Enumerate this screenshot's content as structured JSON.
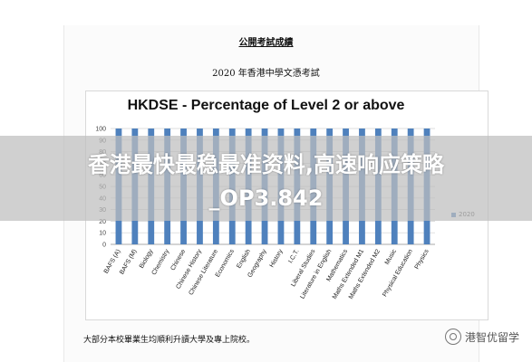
{
  "document": {
    "title": "公開考試成績",
    "subtitle": "2020 年香港中學文憑考試",
    "footnote": "大部分本校畢業生均順利升讀大學及專上院校。"
  },
  "overlay": {
    "line1": "香港最快最稳最准资料,高速响应策略",
    "line2": "_OP3.842"
  },
  "watermark": {
    "text": "港智优留学",
    "icon": "wechat-icon"
  },
  "chart_data": {
    "type": "bar",
    "title": "HKDSE - Percentage of Level 2 or above",
    "categories": [
      "BAFS (A)",
      "BAFS (M)",
      "Biology",
      "Chemistry",
      "Chinese",
      "Chinese History",
      "Chinese Literature",
      "Economics",
      "English",
      "Geography",
      "History",
      "I.C.T.",
      "Liberal Studies",
      "Literature in English",
      "Mathematics",
      "Maths Extended M1",
      "Maths Extended M2",
      "Music",
      "Physical Education",
      "Physics"
    ],
    "series": [
      {
        "name": "2020",
        "values": [
          100,
          100,
          100,
          100,
          100,
          100,
          100,
          100,
          100,
          100,
          100,
          100,
          100,
          100,
          100,
          100,
          100,
          100,
          100,
          100
        ]
      }
    ],
    "ylim": [
      0,
      100
    ],
    "yticks": [
      0,
      10,
      20,
      30,
      40,
      50,
      60,
      70,
      80,
      90,
      100
    ],
    "grid": true,
    "legend_position": "right",
    "colors": {
      "bar": "#4f81bd",
      "grid": "#d0d0d0"
    }
  }
}
